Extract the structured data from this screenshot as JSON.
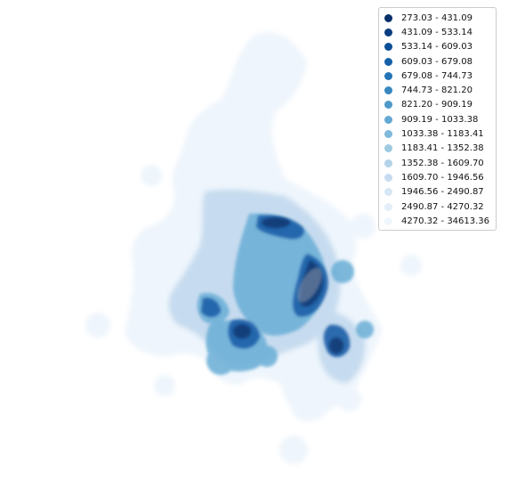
{
  "map": {
    "legend_position": "top-right",
    "classes": [
      {
        "label": "273.03 - 431.09",
        "color": "#08306b"
      },
      {
        "label": "431.09 - 533.14",
        "color": "#083e81"
      },
      {
        "label": "533.14 - 609.03",
        "color": "#0b4e98"
      },
      {
        "label": "609.03 - 679.08",
        "color": "#1460a8"
      },
      {
        "label": "679.08 - 744.73",
        "color": "#2474b6"
      },
      {
        "label": "744.73 - 821.20",
        "color": "#3787c0"
      },
      {
        "label": "821.20 - 909.19",
        "color": "#4d98ca"
      },
      {
        "label": "909.19 - 1033.38",
        "color": "#63a8d3"
      },
      {
        "label": "1033.38 - 1183.41",
        "color": "#7fb9da"
      },
      {
        "label": "1183.41 - 1352.38",
        "color": "#9dcae1"
      },
      {
        "label": "1352.38 - 1609.70",
        "color": "#b3d3e8"
      },
      {
        "label": "1609.70 - 1946.56",
        "color": "#c6dbef"
      },
      {
        "label": "1946.56 - 2490.87",
        "color": "#d6e6f4"
      },
      {
        "label": "2490.87 - 4270.32",
        "color": "#e3eef8"
      },
      {
        "label": "4270.32 - 34613.36",
        "color": "#f0f6fd"
      }
    ]
  }
}
